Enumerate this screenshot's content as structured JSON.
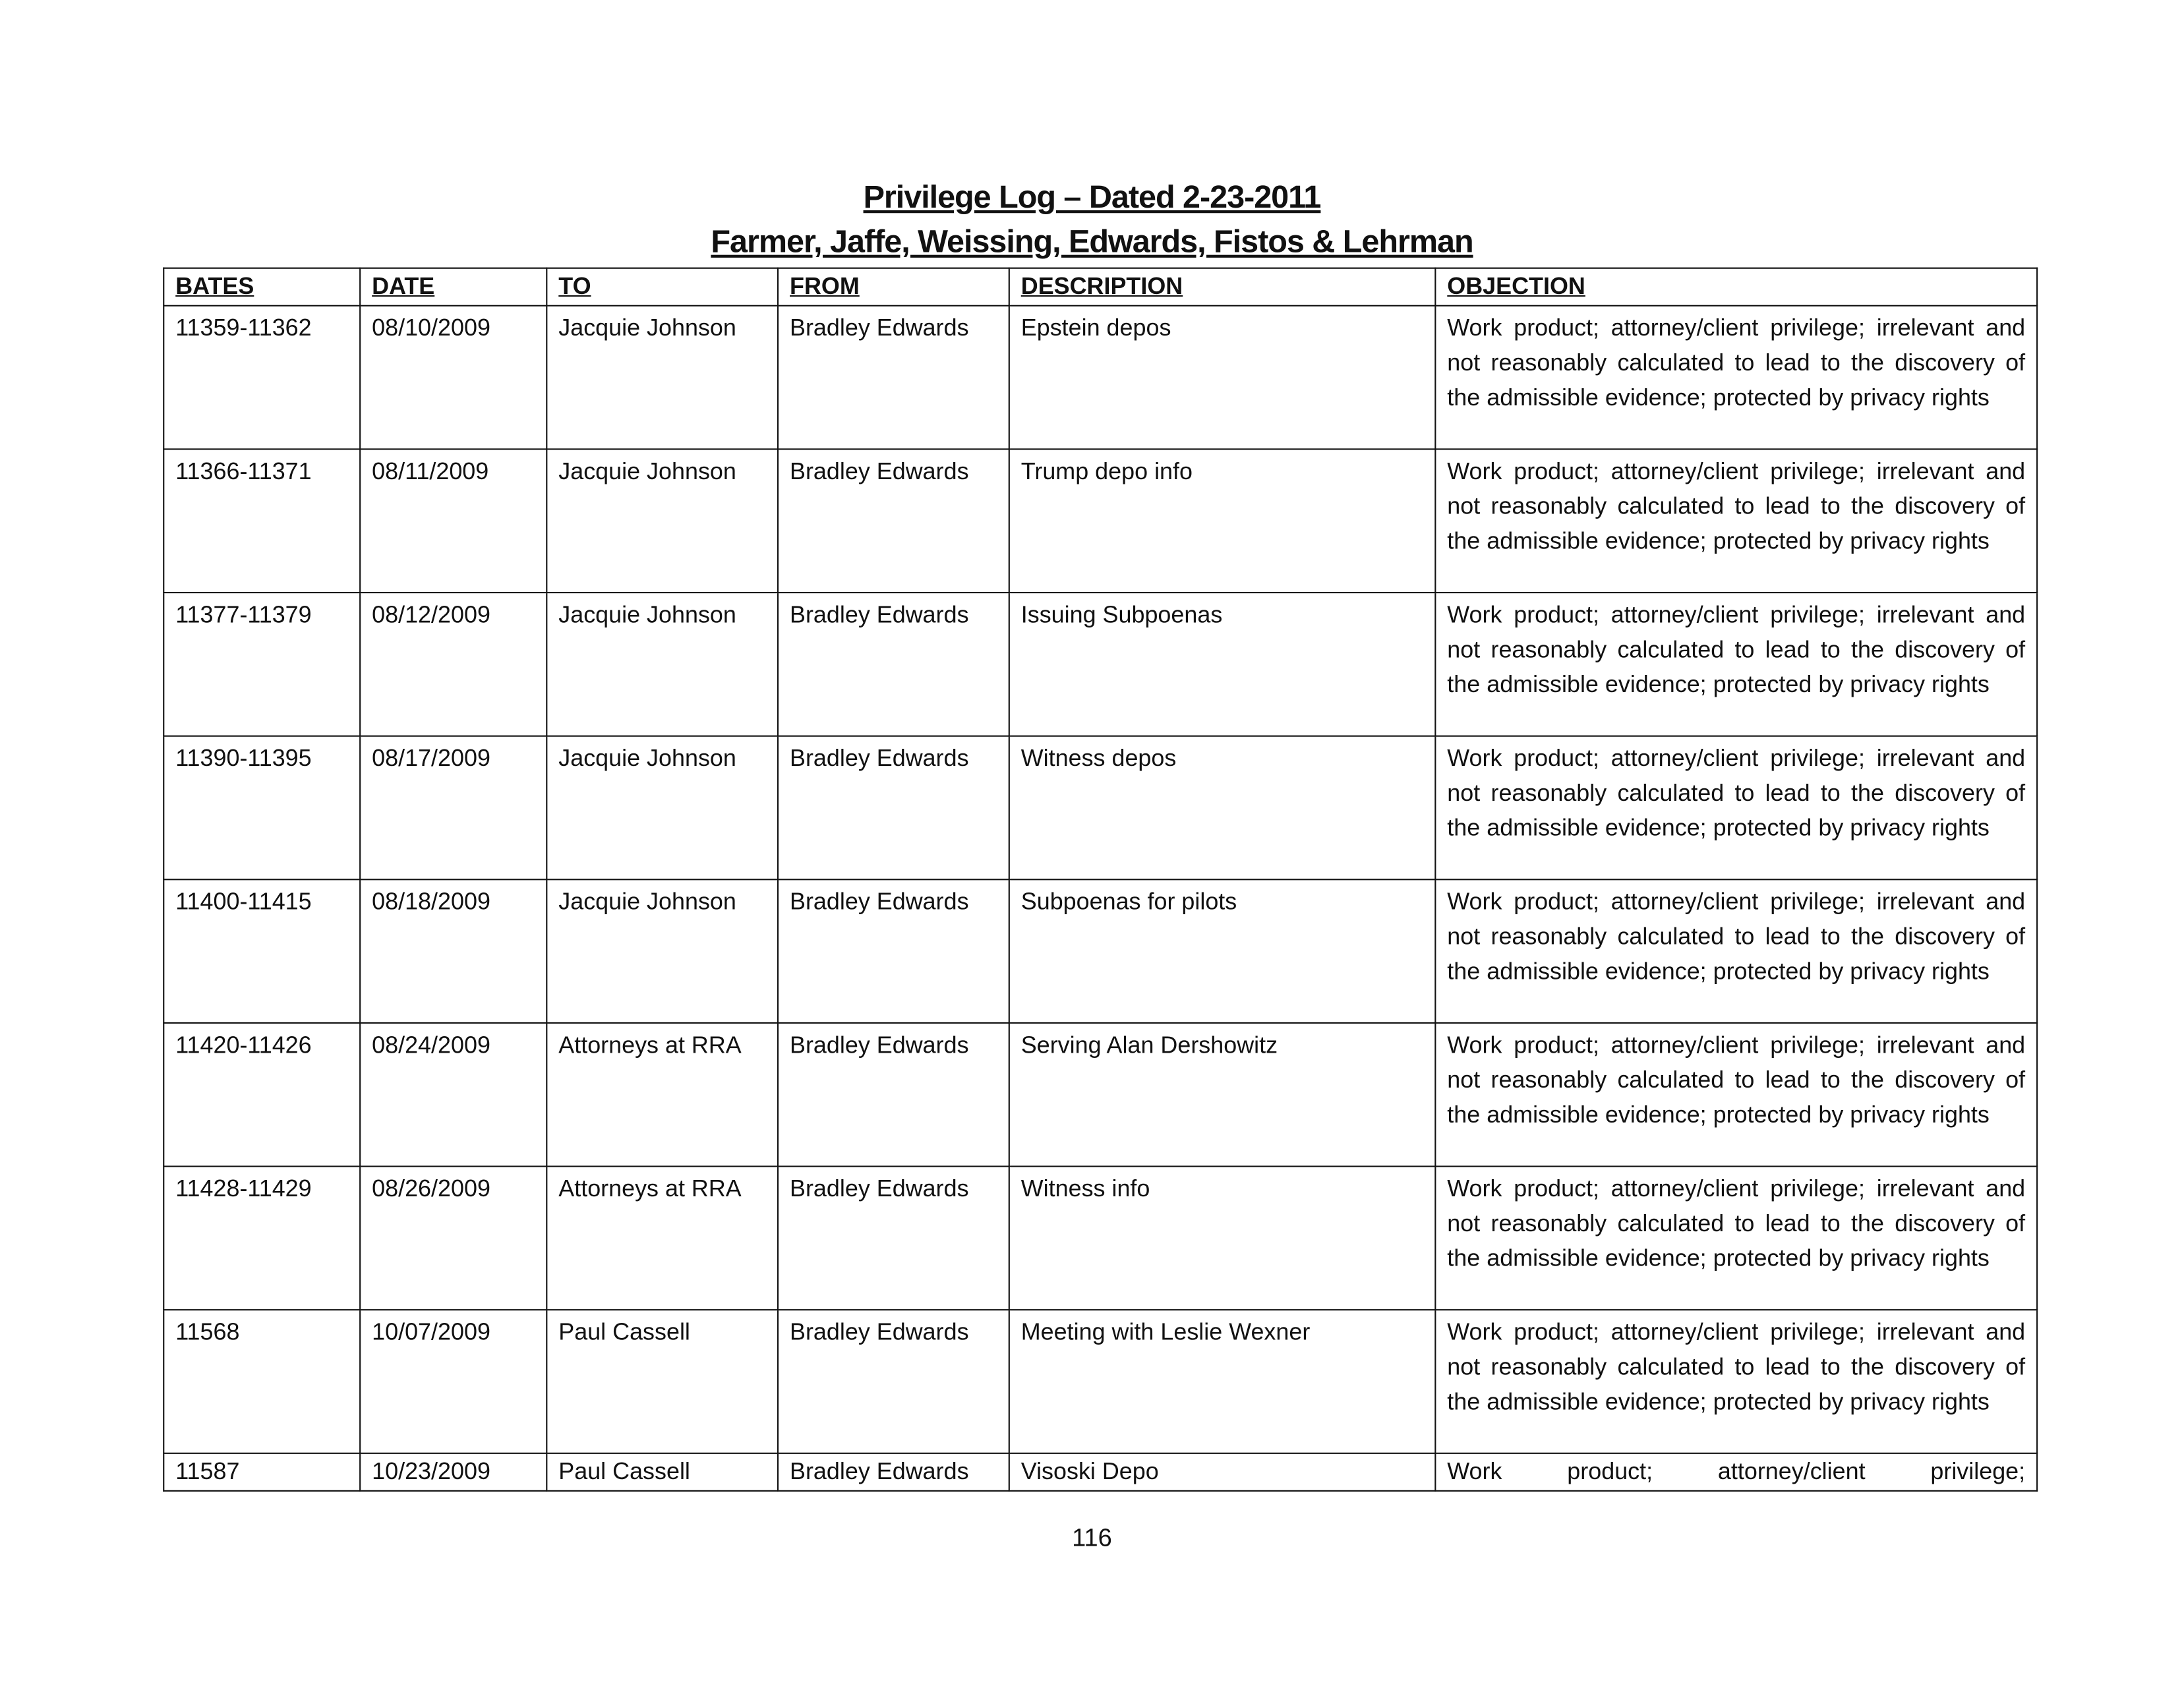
{
  "title": "Privilege Log – Dated 2-23-2011",
  "subtitle": "Farmer, Jaffe, Weissing, Edwards, Fistos & Lehrman",
  "columns": [
    "BATES",
    "DATE",
    "TO",
    "FROM",
    "DESCRIPTION",
    "OBJECTION"
  ],
  "rows": [
    {
      "bates": "11359-11362",
      "date": "08/10/2009",
      "to": "Jacquie Johnson",
      "from": "Bradley Edwards",
      "description": "Epstein depos",
      "objection": "Work product; attorney/client privilege; irrelevant and not reasonably calculated to lead to the discovery of the admissible evidence; protected by privacy rights"
    },
    {
      "bates": "11366-11371",
      "date": "08/11/2009",
      "to": "Jacquie Johnson",
      "from": "Bradley Edwards",
      "description": "Trump depo info",
      "objection": "Work product; attorney/client privilege; irrelevant and not reasonably calculated to lead to the discovery of the admissible evidence; protected by privacy rights"
    },
    {
      "bates": "11377-11379",
      "date": "08/12/2009",
      "to": "Jacquie Johnson",
      "from": "Bradley Edwards",
      "description": "Issuing Subpoenas",
      "objection": "Work product; attorney/client privilege; irrelevant and not reasonably calculated to lead to the discovery of the admissible evidence; protected by privacy rights"
    },
    {
      "bates": "11390-11395",
      "date": "08/17/2009",
      "to": "Jacquie Johnson",
      "from": "Bradley Edwards",
      "description": "Witness depos",
      "objection": "Work product; attorney/client privilege; irrelevant and not reasonably calculated to lead to the discovery of the admissible evidence; protected by privacy rights"
    },
    {
      "bates": "11400-11415",
      "date": "08/18/2009",
      "to": "Jacquie Johnson",
      "from": "Bradley Edwards",
      "description": "Subpoenas for pilots",
      "objection": "Work product; attorney/client privilege; irrelevant and not reasonably calculated to lead to the discovery of the admissible evidence; protected by privacy rights"
    },
    {
      "bates": "11420-11426",
      "date": "08/24/2009",
      "to": "Attorneys at RRA",
      "from": "Bradley Edwards",
      "description": "Serving Alan Dershowitz",
      "objection": "Work product; attorney/client privilege; irrelevant and not reasonably calculated to lead to the discovery of the admissible evidence; protected by privacy rights"
    },
    {
      "bates": "11428-11429",
      "date": "08/26/2009",
      "to": "Attorneys at RRA",
      "from": "Bradley Edwards",
      "description": "Witness info",
      "objection": "Work product; attorney/client privilege; irrelevant and not reasonably calculated to lead to the discovery of the admissible evidence; protected by privacy rights"
    },
    {
      "bates": "11568",
      "date": "10/07/2009",
      "to": "Paul Cassell",
      "from": "Bradley Edwards",
      "description": "Meeting with Leslie Wexner",
      "objection": "Work product; attorney/client privilege; irrelevant and not reasonably calculated to lead to the discovery of the admissible evidence; protected by privacy rights"
    },
    {
      "bates": "11587",
      "date": "10/23/2009",
      "to": "Paul Cassell",
      "from": "Bradley Edwards",
      "description": "Visoski Depo",
      "objection": "Work product; attorney/client privilege;"
    }
  ],
  "page_number": "116"
}
